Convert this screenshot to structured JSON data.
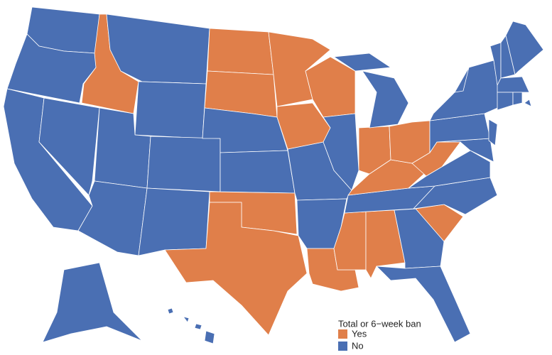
{
  "chart_data": {
    "type": "choropleth",
    "legend_title": "Total or 6−week ban",
    "categories": [
      "Yes",
      "No"
    ],
    "colors": [
      "#e07f4a",
      "#4a6fb3"
    ],
    "regions": [
      1,
      1,
      1,
      1,
      0,
      1,
      1,
      1,
      1,
      1,
      1,
      0,
      0,
      1,
      1,
      0,
      0,
      1,
      1,
      0,
      0,
      0,
      1,
      1,
      1,
      0,
      0,
      0,
      0,
      0,
      0,
      0,
      1,
      1,
      0,
      1,
      1,
      1,
      1,
      1,
      1,
      1,
      1,
      1,
      1,
      1,
      1,
      1,
      1,
      1,
      1
    ],
    "legend_position": "bottom-right"
  }
}
